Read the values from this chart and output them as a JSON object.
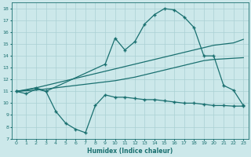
{
  "xlabel": "Humidex (Indice chaleur)",
  "bg_color": "#cce8ea",
  "grid_color": "#aad0d4",
  "line_color": "#1a7070",
  "xlim": [
    -0.5,
    23.5
  ],
  "ylim": [
    7,
    18.5
  ],
  "xticks": [
    0,
    1,
    2,
    3,
    4,
    5,
    6,
    7,
    8,
    9,
    10,
    11,
    12,
    13,
    14,
    15,
    16,
    17,
    18,
    19,
    20,
    21,
    22,
    23
  ],
  "yticks": [
    7,
    8,
    9,
    10,
    11,
    12,
    13,
    14,
    15,
    16,
    17,
    18
  ],
  "line_bottom_x": [
    0,
    1,
    2,
    3,
    4,
    5,
    6,
    7,
    8,
    9,
    10,
    11,
    12,
    13,
    14,
    15,
    16,
    17,
    18,
    19,
    20,
    21,
    22,
    23
  ],
  "line_bottom_y": [
    11.0,
    10.8,
    11.2,
    11.0,
    9.3,
    8.3,
    7.8,
    7.5,
    9.8,
    10.7,
    10.5,
    10.5,
    10.4,
    10.3,
    10.3,
    10.2,
    10.1,
    10.0,
    10.0,
    9.9,
    9.8,
    9.8,
    9.75,
    9.75
  ],
  "line_lower_diag_x": [
    0,
    1,
    2,
    3,
    4,
    5,
    6,
    7,
    8,
    9,
    10,
    11,
    12,
    13,
    14,
    15,
    16,
    17,
    18,
    19,
    20,
    21,
    22,
    23
  ],
  "line_lower_diag_y": [
    11.0,
    11.05,
    11.1,
    11.2,
    11.3,
    11.4,
    11.5,
    11.6,
    11.7,
    11.8,
    11.9,
    12.05,
    12.2,
    12.4,
    12.6,
    12.8,
    13.0,
    13.2,
    13.4,
    13.6,
    13.7,
    13.75,
    13.8,
    13.85
  ],
  "line_upper_diag_x": [
    0,
    1,
    2,
    3,
    4,
    5,
    6,
    7,
    8,
    9,
    10,
    11,
    12,
    13,
    14,
    15,
    16,
    17,
    18,
    19,
    20,
    21,
    22,
    23
  ],
  "line_upper_diag_y": [
    11.0,
    11.1,
    11.3,
    11.5,
    11.7,
    11.9,
    12.1,
    12.3,
    12.5,
    12.7,
    12.9,
    13.1,
    13.3,
    13.5,
    13.7,
    13.9,
    14.1,
    14.3,
    14.5,
    14.7,
    14.9,
    15.0,
    15.1,
    15.4
  ],
  "line_top_x": [
    0,
    2,
    3,
    9,
    10,
    11,
    12,
    13,
    14,
    15,
    16,
    17,
    18,
    19,
    20,
    21,
    22,
    23
  ],
  "line_top_y": [
    11.0,
    11.3,
    11.0,
    13.3,
    15.5,
    14.5,
    15.2,
    16.7,
    17.5,
    18.0,
    17.9,
    17.3,
    16.4,
    14.0,
    14.0,
    11.5,
    11.1,
    9.8
  ]
}
